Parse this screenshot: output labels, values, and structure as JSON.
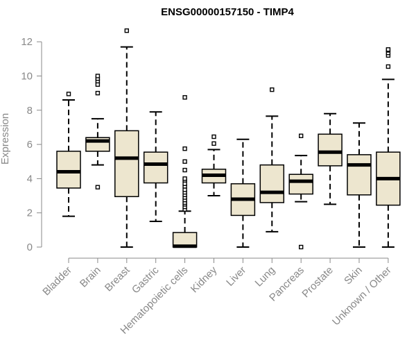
{
  "chart_data": {
    "type": "boxplot",
    "title": "ENSG00000157150 - TIMP4",
    "xlabel": "",
    "ylabel": "Expression",
    "ylim": [
      0,
      12.6
    ],
    "yticks": [
      0,
      2,
      4,
      6,
      8,
      10,
      12
    ],
    "box_fill": "#EDE6CF",
    "categories": [
      "Bladder",
      "Brain",
      "Breast",
      "Gastric",
      "Hematopoietic cells",
      "Kidney",
      "Liver",
      "Lung",
      "Pancreas",
      "Prostate",
      "Skin",
      "Unknown / Other"
    ],
    "boxes": [
      {
        "name": "Bladder",
        "whisker_low": 1.8,
        "q1": 3.45,
        "median": 4.4,
        "q3": 5.6,
        "whisker_high": 8.6,
        "outliers": [
          8.95
        ]
      },
      {
        "name": "Brain",
        "whisker_low": 4.8,
        "q1": 5.6,
        "median": 6.2,
        "q3": 6.4,
        "whisker_high": 7.5,
        "outliers": [
          3.5,
          9.0,
          9.5,
          9.7,
          9.85,
          10.0
        ]
      },
      {
        "name": "Breast",
        "whisker_low": 0.0,
        "q1": 2.95,
        "median": 5.2,
        "q3": 6.8,
        "whisker_high": 11.7,
        "outliers": [
          12.65
        ]
      },
      {
        "name": "Gastric",
        "whisker_low": 1.5,
        "q1": 3.75,
        "median": 4.85,
        "q3": 5.55,
        "whisker_high": 7.9,
        "outliers": []
      },
      {
        "name": "Hematopoietic cells",
        "whisker_low": 0.0,
        "q1": 0.0,
        "median": 0.05,
        "q3": 0.85,
        "whisker_high": 2.1,
        "outliers": [
          2.2,
          2.35,
          2.5,
          2.6,
          2.75,
          2.9,
          3.05,
          3.2,
          3.35,
          3.55,
          3.7,
          3.9,
          4.0,
          4.5,
          5.0,
          5.75,
          8.75
        ]
      },
      {
        "name": "Kidney",
        "whisker_low": 3.0,
        "q1": 3.75,
        "median": 4.2,
        "q3": 4.55,
        "whisker_high": 5.7,
        "outliers": [
          6.05,
          6.45
        ]
      },
      {
        "name": "Liver",
        "whisker_low": 0.0,
        "q1": 1.85,
        "median": 2.8,
        "q3": 3.7,
        "whisker_high": 6.3,
        "outliers": []
      },
      {
        "name": "Lung",
        "whisker_low": 0.9,
        "q1": 2.6,
        "median": 3.2,
        "q3": 4.8,
        "whisker_high": 7.65,
        "outliers": [
          9.2
        ]
      },
      {
        "name": "Pancreas",
        "whisker_low": 2.65,
        "q1": 3.1,
        "median": 3.85,
        "q3": 4.25,
        "whisker_high": 5.35,
        "outliers": [
          0.0,
          6.5
        ]
      },
      {
        "name": "Prostate",
        "whisker_low": 2.5,
        "q1": 4.75,
        "median": 5.55,
        "q3": 6.6,
        "whisker_high": 7.8,
        "outliers": []
      },
      {
        "name": "Skin",
        "whisker_low": 0.0,
        "q1": 3.05,
        "median": 4.8,
        "q3": 5.4,
        "whisker_high": 7.25,
        "outliers": []
      },
      {
        "name": "Unknown / Other",
        "whisker_low": 0.0,
        "q1": 2.45,
        "median": 4.0,
        "q3": 5.55,
        "whisker_high": 9.8,
        "outliers": [
          10.55,
          11.2,
          11.35,
          11.5,
          11.55
        ]
      }
    ]
  }
}
